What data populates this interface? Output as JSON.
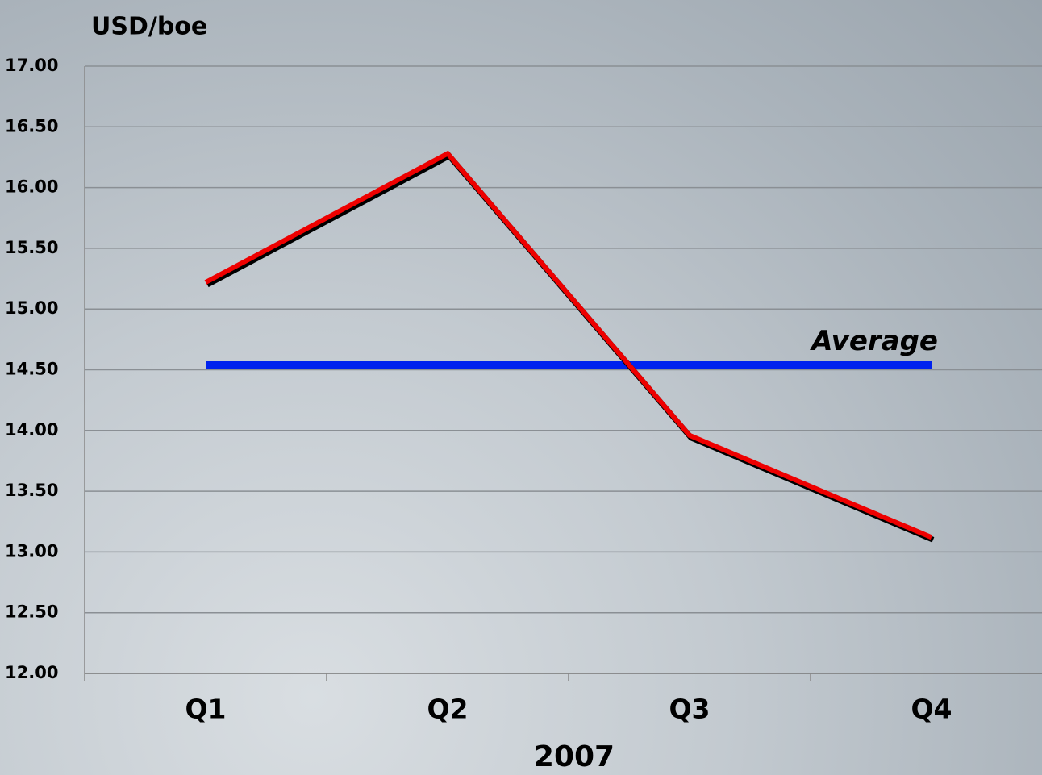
{
  "chart_data": {
    "type": "line",
    "y_label": "USD/boe",
    "x_label": "2007",
    "categories": [
      "Q1",
      "Q2",
      "Q3",
      "Q4"
    ],
    "series": [
      {
        "color": "#ee0000",
        "values": [
          15.22,
          16.28,
          13.96,
          13.12
        ]
      }
    ],
    "reference_lines": [
      {
        "label": "Average",
        "value": 14.54,
        "color": "#0022ee"
      }
    ],
    "ylim": [
      12,
      17
    ],
    "yticks": [
      {
        "value": 12,
        "label": "12.00"
      },
      {
        "value": 12.5,
        "label": "12.50"
      },
      {
        "value": 13,
        "label": "13.00"
      },
      {
        "value": 13.5,
        "label": "13.50"
      },
      {
        "value": 14,
        "label": "14.00"
      },
      {
        "value": 14.5,
        "label": "14.50"
      },
      {
        "value": 15,
        "label": "15.00"
      },
      {
        "value": 15.5,
        "label": "15.50"
      },
      {
        "value": 16,
        "label": "16.00"
      },
      {
        "value": 16.5,
        "label": "16.50"
      },
      {
        "value": 17,
        "label": "17.00"
      }
    ],
    "grid": true
  }
}
